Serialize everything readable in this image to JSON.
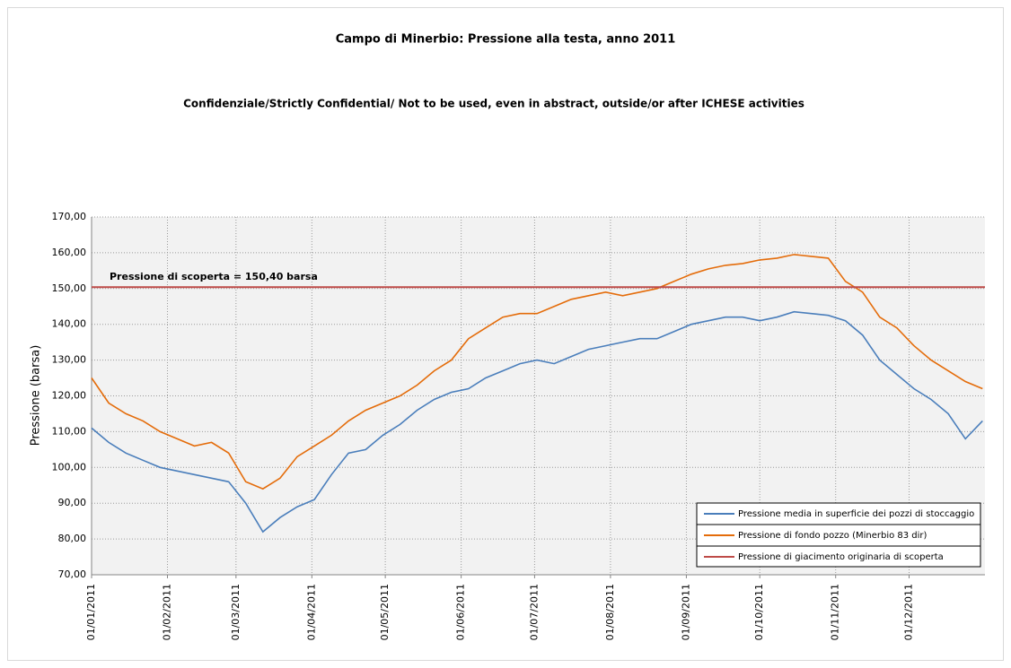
{
  "chart_data": {
    "type": "line",
    "title": "Campo di Minerbio: Pressione alla testa, anno 2011",
    "subtitle": "Confidenziale/Strictly Confidential/ Not to be used, even in abstract, outside/or after ICHESE activities",
    "y_label": "Pressione (barsa)",
    "annotation": "Pressione di scoperta = 150,40 barsa",
    "x": [
      "01/01/2011",
      "08/01/2011",
      "15/01/2011",
      "22/01/2011",
      "29/01/2011",
      "05/02/2011",
      "12/02/2011",
      "19/02/2011",
      "26/02/2011",
      "05/03/2011",
      "12/03/2011",
      "19/03/2011",
      "26/03/2011",
      "02/04/2011",
      "09/04/2011",
      "16/04/2011",
      "23/04/2011",
      "30/04/2011",
      "07/05/2011",
      "14/05/2011",
      "21/05/2011",
      "28/05/2011",
      "04/06/2011",
      "11/06/2011",
      "18/06/2011",
      "25/06/2011",
      "02/07/2011",
      "09/07/2011",
      "16/07/2011",
      "23/07/2011",
      "30/07/2011",
      "06/08/2011",
      "13/08/2011",
      "20/08/2011",
      "27/08/2011",
      "03/09/2011",
      "10/09/2011",
      "17/09/2011",
      "24/09/2011",
      "01/10/2011",
      "08/10/2011",
      "15/10/2011",
      "22/10/2011",
      "29/10/2011",
      "05/11/2011",
      "12/11/2011",
      "19/11/2011",
      "26/11/2011",
      "03/12/2011",
      "10/12/2011",
      "17/12/2011",
      "24/12/2011",
      "31/12/2011"
    ],
    "series": [
      {
        "name": "Pressione media in superficie dei pozzi di stoccaggio",
        "color": "#4a7ebb",
        "values": [
          111,
          107,
          104,
          102,
          100,
          99,
          98,
          97,
          96,
          90,
          82,
          86,
          89,
          91,
          98,
          104,
          105,
          109,
          112,
          116,
          119,
          121,
          122,
          125,
          127,
          129,
          130,
          129,
          131,
          133,
          134,
          135,
          136,
          136,
          138,
          140,
          141,
          142,
          142,
          141,
          142,
          143.5,
          143,
          142.5,
          141,
          137,
          130,
          126,
          122,
          119,
          115,
          108,
          113
        ]
      },
      {
        "name": "Pressione di fondo pozzo (Minerbio 83 dir)",
        "color": "#e46c0a",
        "values": [
          125,
          118,
          115,
          113,
          110,
          108,
          106,
          107,
          104,
          96,
          94,
          97,
          103,
          106,
          109,
          113,
          116,
          118,
          120,
          123,
          127,
          130,
          136,
          139,
          142,
          143,
          143,
          145,
          147,
          148,
          149,
          148,
          149,
          150,
          152,
          154,
          155.5,
          156.5,
          157,
          158,
          158.5,
          159.5,
          159,
          158.5,
          152,
          149,
          142,
          139,
          134,
          130,
          127,
          124,
          122
        ]
      },
      {
        "name": "Pressione di giacimento originaria di scoperta",
        "color": "#be4b48",
        "value": 150.4
      }
    ],
    "xlim": [
      "01/01/2011",
      "01/01/2012"
    ],
    "xticks": [
      "01/01/2011",
      "01/02/2011",
      "01/03/2011",
      "01/04/2011",
      "01/05/2011",
      "01/06/2011",
      "01/07/2011",
      "01/08/2011",
      "01/09/2011",
      "01/10/2011",
      "01/11/2011",
      "01/12/2011"
    ],
    "ylim": [
      70,
      170
    ],
    "yticks": [
      {
        "value": 70,
        "label": "70,00"
      },
      {
        "value": 80,
        "label": "80,00"
      },
      {
        "value": 90,
        "label": "90,00"
      },
      {
        "value": 100,
        "label": "100,00"
      },
      {
        "value": 110,
        "label": "110,00"
      },
      {
        "value": 120,
        "label": "120,00"
      },
      {
        "value": 130,
        "label": "130,00"
      },
      {
        "value": 140,
        "label": "140,00"
      },
      {
        "value": 150,
        "label": "150,00"
      },
      {
        "value": 160,
        "label": "160,00"
      },
      {
        "value": 170,
        "label": "170,00"
      }
    ],
    "grid": true,
    "legend": "lower right"
  }
}
